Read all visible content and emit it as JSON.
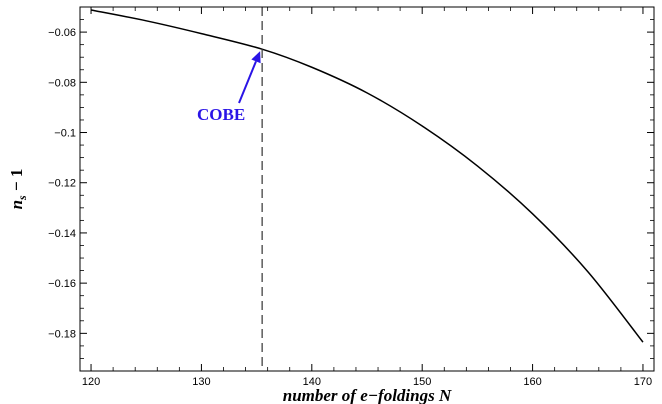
{
  "chart_data": {
    "type": "line",
    "title": "",
    "xlabel": "number of e−foldings N",
    "ylabel": "n_s − 1",
    "xlim": [
      119,
      171
    ],
    "ylim": [
      -0.195,
      -0.05
    ],
    "x_ticks": [
      120,
      130,
      140,
      150,
      160,
      170
    ],
    "x_tick_labels": [
      "120",
      "130",
      "140",
      "150",
      "160",
      "170"
    ],
    "y_ticks": [
      -0.06,
      -0.08,
      -0.1,
      -0.12,
      -0.14,
      -0.16,
      -0.18
    ],
    "y_tick_labels": [
      "−0.06",
      "−0.08",
      "−0.1",
      "−0.12",
      "−0.14",
      "−0.16",
      "−0.18"
    ],
    "grid": false,
    "series": [
      {
        "x": [
          120,
          125,
          130,
          135.5,
          140,
          145,
          150,
          155,
          160,
          165,
          170
        ],
        "y": [
          -0.0512,
          -0.0555,
          -0.0606,
          -0.0668,
          -0.074,
          -0.0842,
          -0.0974,
          -0.1133,
          -0.1324,
          -0.1554,
          -0.1835
        ]
      }
    ],
    "vline": {
      "x": 135.5,
      "style": "dashed"
    },
    "annotation": {
      "text": "COBE",
      "x": 135.5,
      "y": -0.0668,
      "color": "#2a14e6"
    },
    "colors": {
      "line": "#000000",
      "annotation": "#2a14e6"
    }
  }
}
